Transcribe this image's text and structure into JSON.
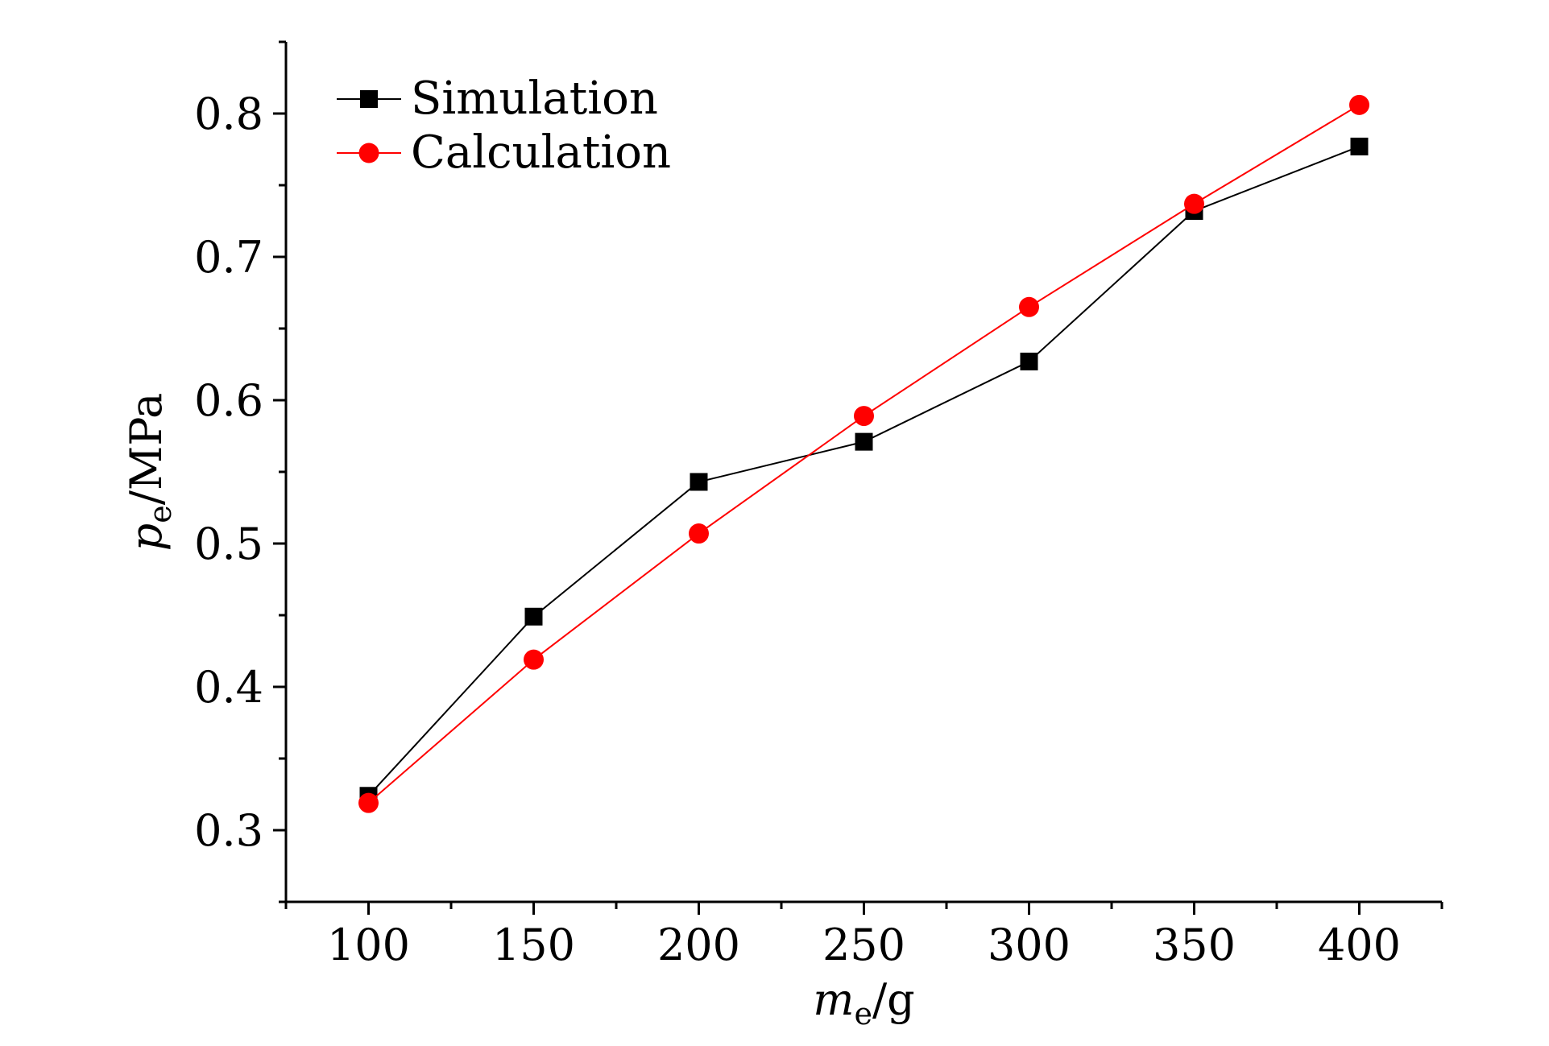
{
  "chart_data": {
    "type": "line",
    "title": "",
    "xlabel": {
      "var": "m",
      "sub": "e",
      "unit": "/g"
    },
    "ylabel": {
      "var": "p",
      "sub": "e",
      "unit": "/MPa"
    },
    "xlim": [
      75,
      425
    ],
    "ylim": [
      0.25,
      0.85
    ],
    "xticks": [
      100,
      150,
      200,
      250,
      300,
      350,
      400
    ],
    "xtick_labels": [
      "100",
      "150",
      "200",
      "250",
      "300",
      "350",
      "400"
    ],
    "yticks": [
      0.3,
      0.4,
      0.5,
      0.6,
      0.7,
      0.8
    ],
    "ytick_labels": [
      "0.3",
      "0.4",
      "0.5",
      "0.6",
      "0.7",
      "0.8"
    ],
    "grid": false,
    "legend_position": "top-left",
    "x": [
      100,
      150,
      200,
      250,
      300,
      350,
      400
    ],
    "series": [
      {
        "name": "Simulation",
        "marker": "square",
        "color": "#000000",
        "values": [
          0.324,
          0.449,
          0.543,
          0.571,
          0.627,
          0.732,
          0.777
        ]
      },
      {
        "name": "Calculation",
        "marker": "circle",
        "color": "#ff0000",
        "values": [
          0.319,
          0.419,
          0.507,
          0.589,
          0.665,
          0.737,
          0.806
        ]
      }
    ]
  }
}
